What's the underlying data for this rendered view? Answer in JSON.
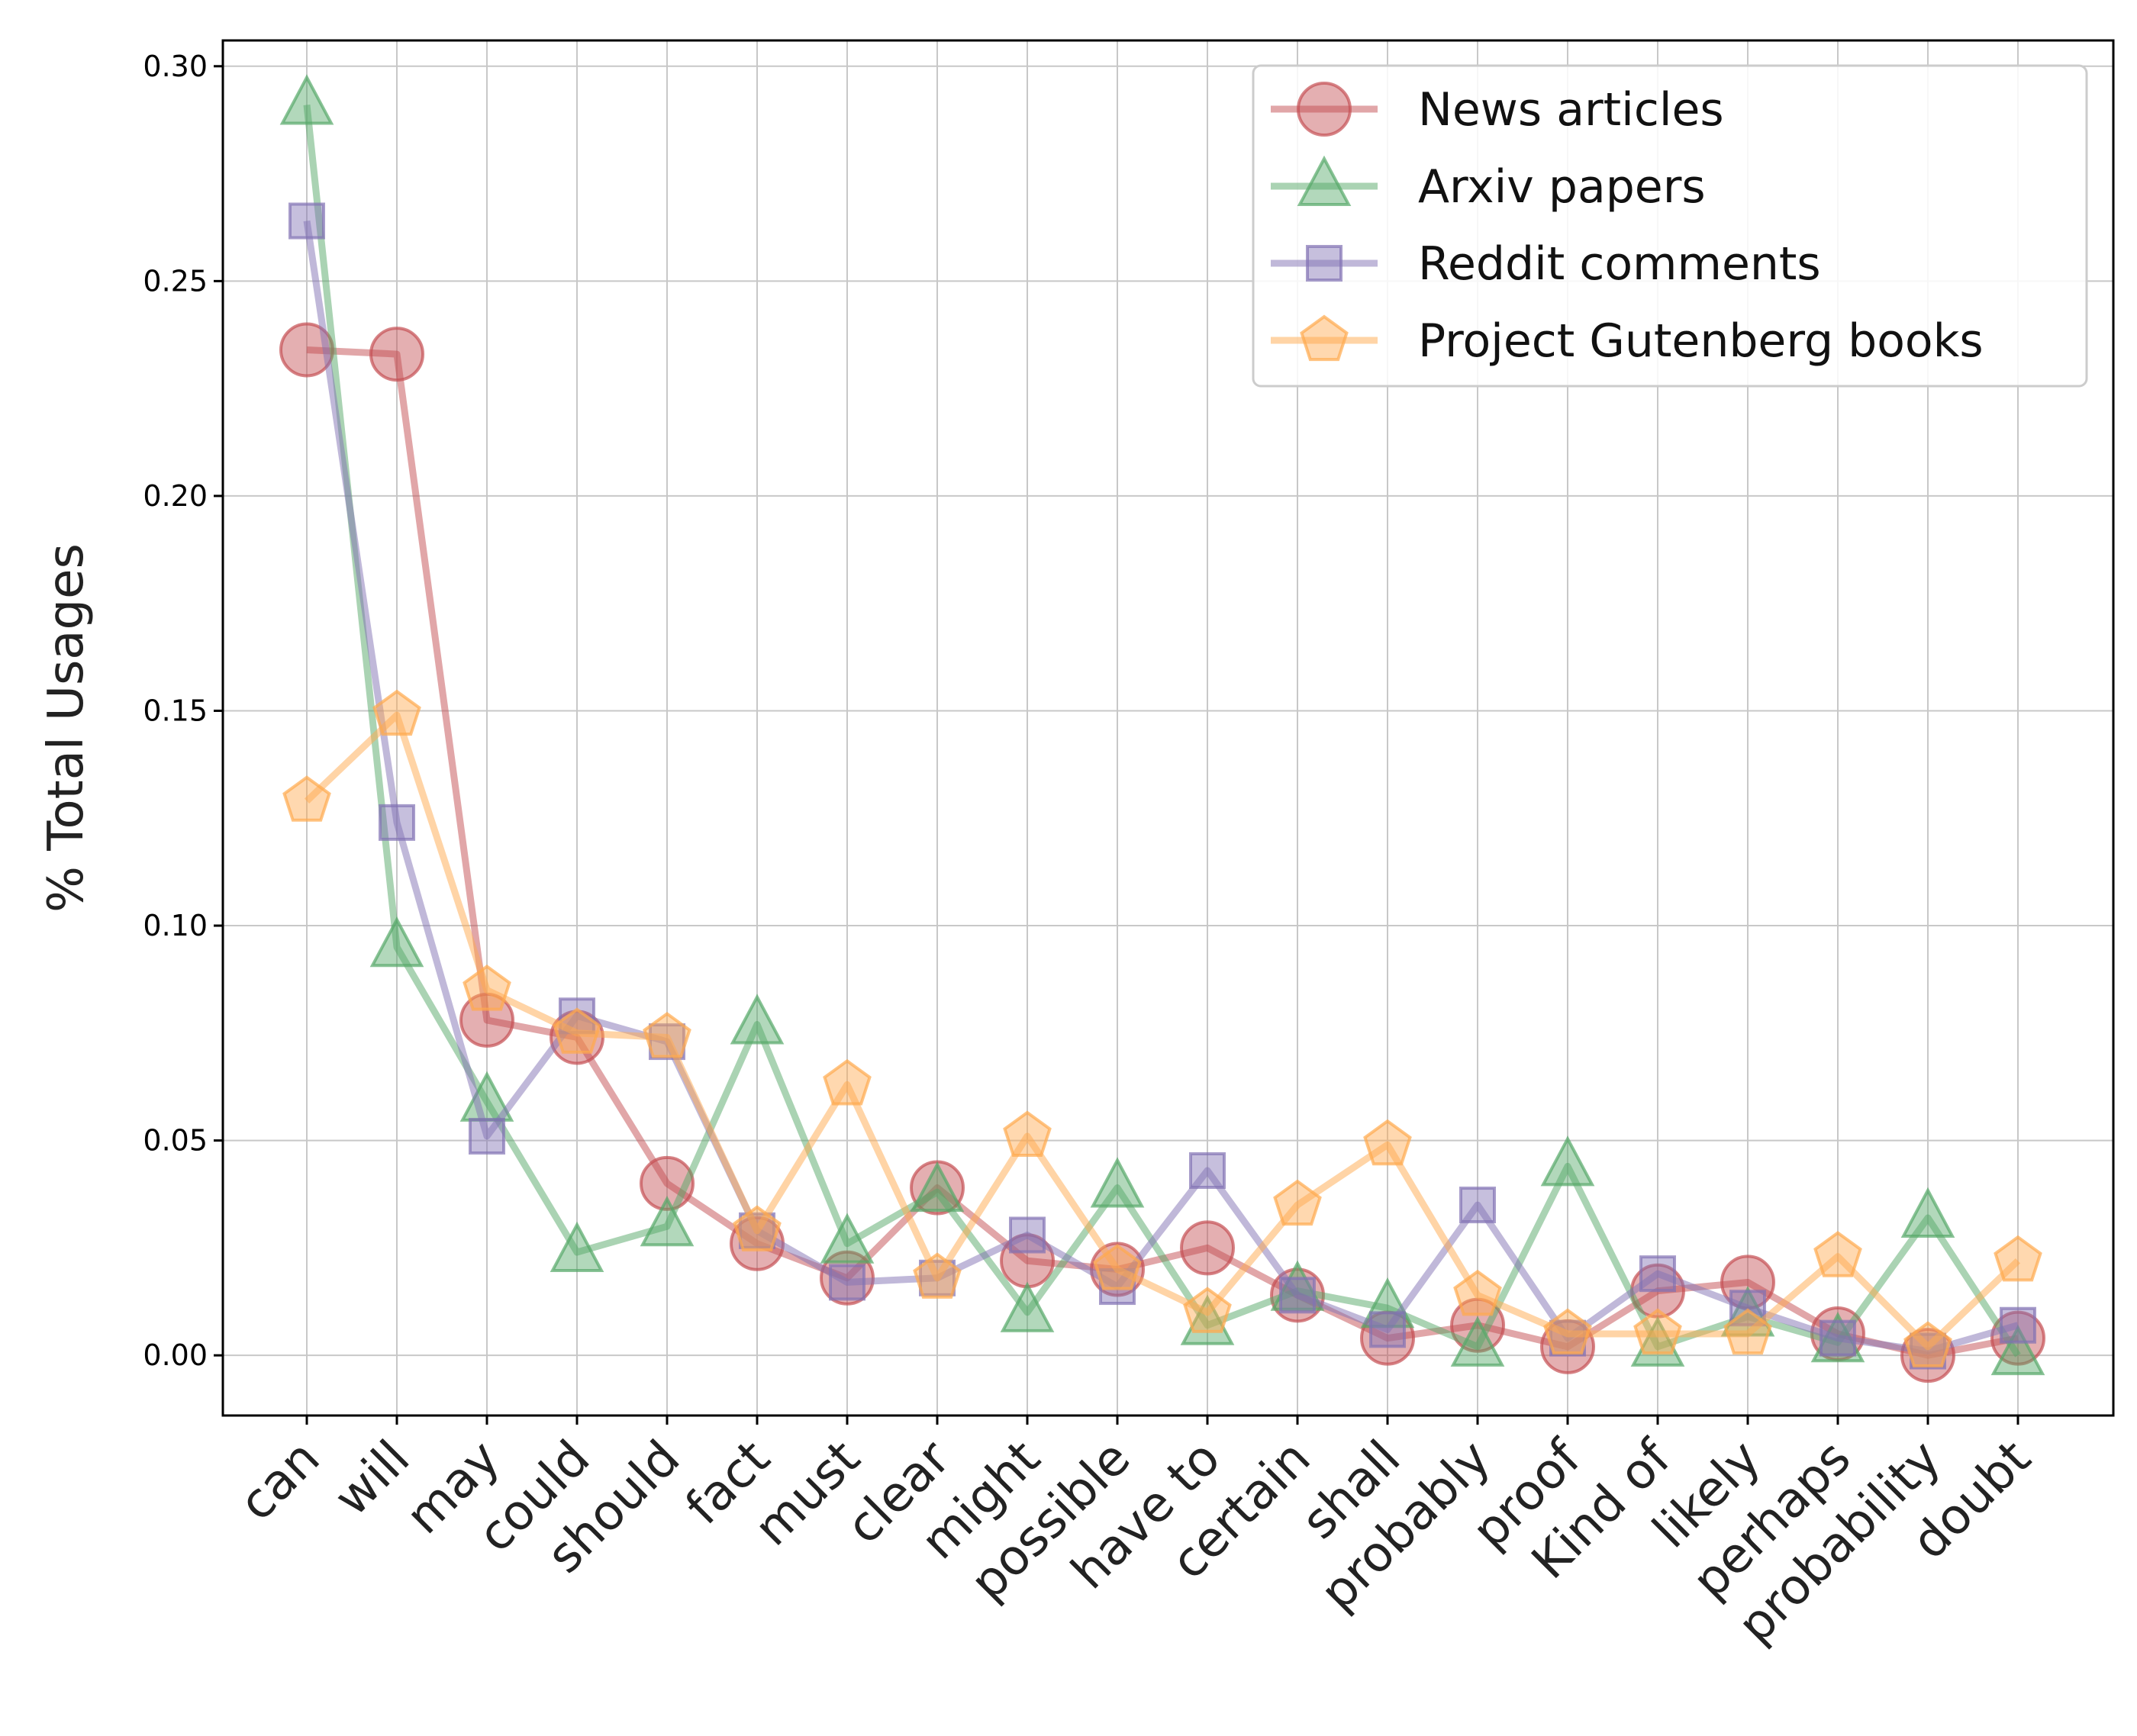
{
  "chart_data": {
    "type": "line",
    "title": "",
    "xlabel": "",
    "ylabel": "% Total Usages",
    "ylim": [
      -0.014,
      0.306
    ],
    "yticks": [
      "0.00",
      "0.05",
      "0.10",
      "0.15",
      "0.20",
      "0.25",
      "0.30"
    ],
    "ytick_values": [
      0.0,
      0.05,
      0.1,
      0.15,
      0.2,
      0.25,
      0.3
    ],
    "grid": true,
    "legend_position": "top-right",
    "categories": [
      "can",
      "will",
      "may",
      "could",
      "should",
      "fact",
      "must",
      "clear",
      "might",
      "possible",
      "have to",
      "certain",
      "shall",
      "probably",
      "proof",
      "Kind of",
      "likely",
      "perhaps",
      "probability",
      "doubt"
    ],
    "series": [
      {
        "name": "News articles",
        "color": "#c44e52",
        "marker": "circle",
        "values": [
          0.234,
          0.233,
          0.078,
          0.074,
          0.04,
          0.026,
          0.018,
          0.039,
          0.022,
          0.02,
          0.025,
          0.014,
          0.004,
          0.007,
          0.002,
          0.015,
          0.017,
          0.005,
          0.0,
          0.004
        ]
      },
      {
        "name": "Arxiv papers",
        "color": "#55a868",
        "marker": "triangle",
        "values": [
          0.291,
          0.095,
          0.059,
          0.024,
          0.03,
          0.077,
          0.026,
          0.038,
          0.01,
          0.039,
          0.007,
          0.015,
          0.011,
          0.002,
          0.044,
          0.002,
          0.009,
          0.003,
          0.032,
          0.0
        ]
      },
      {
        "name": "Reddit comments",
        "color": "#8172b3",
        "marker": "square",
        "values": [
          0.264,
          0.124,
          0.051,
          0.079,
          0.073,
          0.029,
          0.017,
          0.018,
          0.028,
          0.016,
          0.043,
          0.014,
          0.006,
          0.035,
          0.004,
          0.019,
          0.011,
          0.004,
          0.001,
          0.007
        ]
      },
      {
        "name": "Project Gutenberg books",
        "color": "#ffa94d",
        "marker": "pentagon",
        "values": [
          0.129,
          0.149,
          0.085,
          0.075,
          0.074,
          0.029,
          0.063,
          0.018,
          0.051,
          0.02,
          0.01,
          0.035,
          0.049,
          0.014,
          0.005,
          0.005,
          0.005,
          0.023,
          0.002,
          0.022
        ]
      }
    ]
  }
}
